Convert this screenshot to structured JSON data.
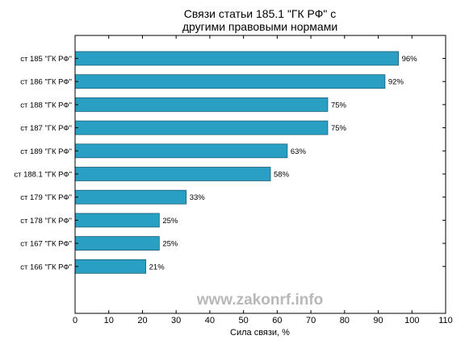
{
  "chart_data": {
    "type": "bar",
    "orientation": "horizontal",
    "title_lines": [
      "Связи статьи 185.1 \"ГК РФ\" с",
      "другими правовыми нормами"
    ],
    "categories": [
      "ст 185 \"ГК РФ\"",
      "ст 186 \"ГК РФ\"",
      "ст 188 \"ГК РФ\"",
      "ст 187 \"ГК РФ\"",
      "ст 189 \"ГК РФ\"",
      "ст 188.1 \"ГК РФ\"",
      "ст 179 \"ГК РФ\"",
      "ст 178 \"ГК РФ\"",
      "ст 167 \"ГК РФ\"",
      "ст 166 \"ГК РФ\""
    ],
    "values": [
      96,
      92,
      75,
      75,
      63,
      58,
      33,
      25,
      25,
      21
    ],
    "data_labels": [
      "96%",
      "92%",
      "75%",
      "75%",
      "63%",
      "58%",
      "33%",
      "25%",
      "25%",
      "21%"
    ],
    "xlabel": "Сила связи, %",
    "xlim": [
      0,
      110
    ],
    "xticks": [
      0,
      10,
      20,
      30,
      40,
      50,
      60,
      70,
      80,
      90,
      100,
      110
    ],
    "grid": false,
    "bar_color": "#2a9fc4",
    "bar_edge_color": "#1a5f78",
    "watermark": "www.zakonrf.info"
  }
}
